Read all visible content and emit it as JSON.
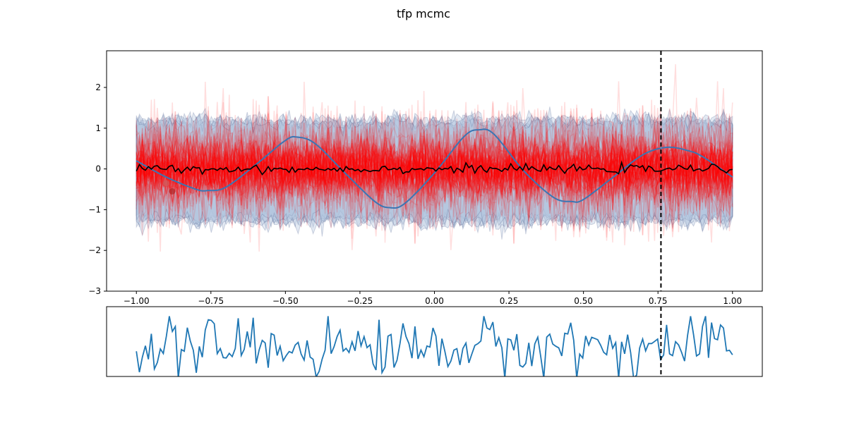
{
  "figure": {
    "title": "tfp mcmc"
  },
  "chart_data": [
    {
      "type": "line",
      "panel": "main",
      "title": "tfp mcmc",
      "xlabel": "",
      "ylabel": "",
      "xlim": [
        -1.1,
        1.1
      ],
      "ylim": [
        -3,
        2.9
      ],
      "xticks": [
        -1.0,
        -0.75,
        -0.5,
        -0.25,
        0.0,
        0.25,
        0.5,
        0.75,
        1.0
      ],
      "xtick_labels": [
        "−1.00",
        "−0.75",
        "−0.50",
        "−0.25",
        "0.00",
        "0.25",
        "0.50",
        "0.75",
        "1.00"
      ],
      "yticks": [
        -3,
        -2,
        -1,
        0,
        1,
        2
      ],
      "ytick_labels": [
        "−3",
        "−2",
        "−1",
        "0",
        "1",
        "2"
      ],
      "grid": false,
      "legend": "none",
      "x_domain": [
        -1.0,
        1.0
      ],
      "n_samples": 40,
      "posterior_samples": {
        "approx_mean": 0.0,
        "approx_sd": 0.6,
        "color": "#ff0000",
        "min": -2.7,
        "max": 2.7
      },
      "uncertainty_band": {
        "approx_lower": -1.25,
        "approx_upper": 1.15,
        "color": "#b0c4de"
      },
      "series": [
        {
          "role": "true_function",
          "color": "#3a76b4",
          "x": [
            -1.0,
            -0.9,
            -0.8,
            -0.76,
            -0.7,
            -0.6,
            -0.5,
            -0.46,
            -0.4,
            -0.3,
            -0.2,
            -0.15,
            -0.1,
            0.0,
            0.1,
            0.15,
            0.2,
            0.3,
            0.4,
            0.46,
            0.5,
            0.6,
            0.7,
            0.78,
            0.85,
            0.9,
            1.0
          ],
          "y": [
            0.2,
            -0.2,
            -0.5,
            -0.53,
            -0.45,
            0.1,
            0.7,
            0.78,
            0.62,
            -0.1,
            -0.8,
            -0.95,
            -0.85,
            -0.1,
            0.8,
            0.96,
            0.85,
            -0.05,
            -0.7,
            -0.8,
            -0.75,
            -0.2,
            0.35,
            0.53,
            0.45,
            0.3,
            -0.2
          ]
        },
        {
          "role": "posterior_mean",
          "color": "#000000",
          "approx_level": 0.0,
          "approx_noise": 0.05
        }
      ],
      "scatter": [
        {
          "x": -0.88,
          "y": -0.55,
          "color": "#b22222"
        },
        {
          "x": -0.9,
          "y": -0.35,
          "color": "#cd5c5c"
        }
      ],
      "vline": {
        "x": 0.76,
        "style": "dashed",
        "color": "#000000"
      }
    },
    {
      "type": "line",
      "panel": "bottom",
      "xlabel": "",
      "ylabel": "",
      "xticks": [],
      "yticks": [],
      "x_domain": [
        -1.0,
        1.0
      ],
      "n_points": 200,
      "series": [
        {
          "role": "trace",
          "color": "#1f77b4"
        }
      ],
      "vline": {
        "x": 0.76,
        "style": "dashed",
        "color": "#000000"
      }
    }
  ]
}
